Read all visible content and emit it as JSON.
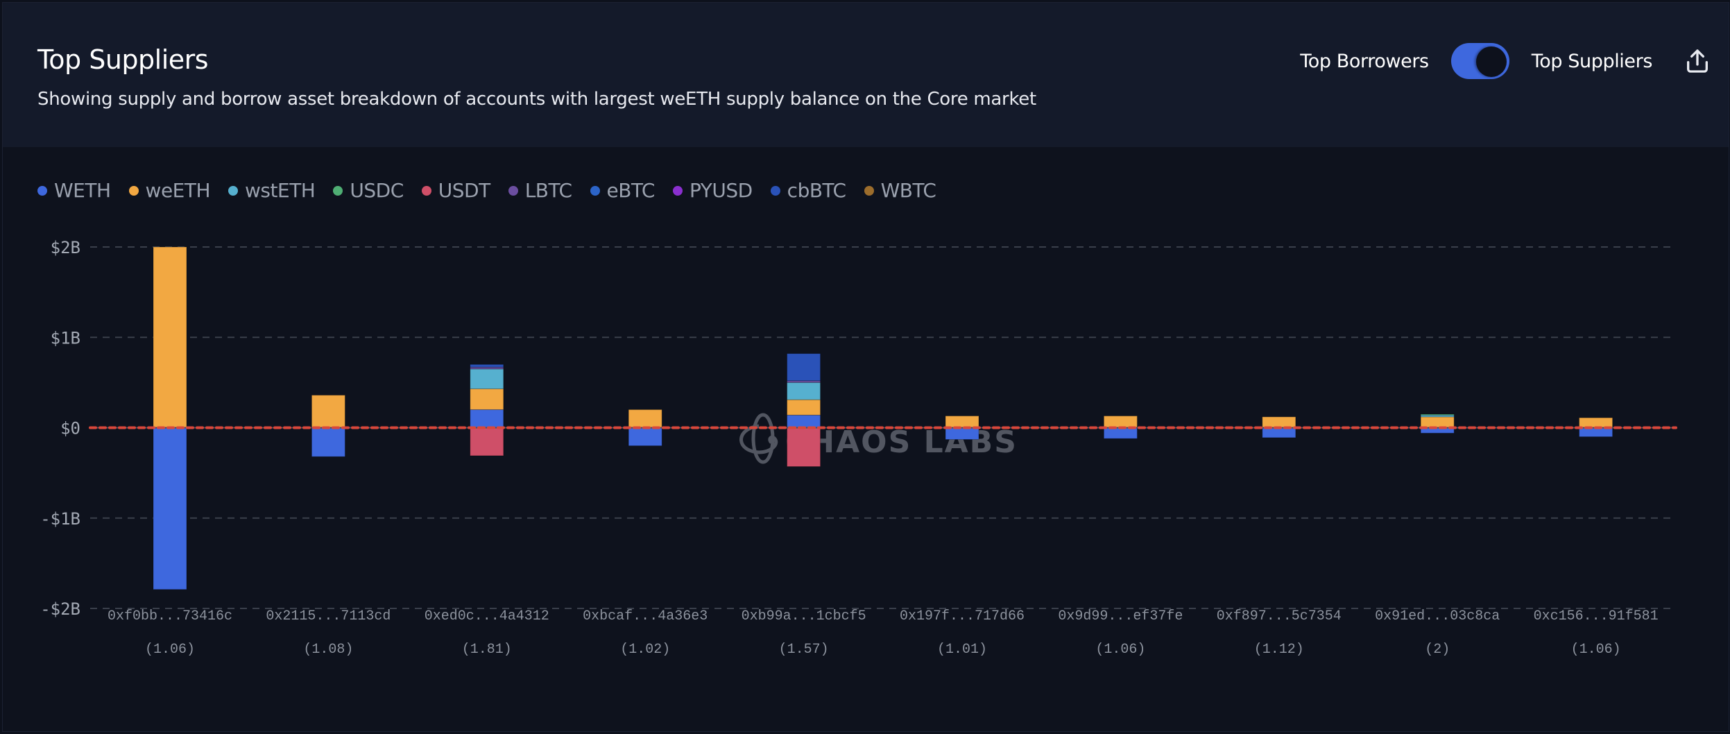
{
  "header": {
    "title": "Top Suppliers",
    "subtitle": "Showing supply and borrow asset breakdown of accounts with largest weETH supply balance on the Core market",
    "toggle_left_label": "Top Borrowers",
    "toggle_right_label": "Top Suppliers",
    "toggle_state": "Top Suppliers",
    "export_icon": "share-upload-icon"
  },
  "colors": {
    "accent": "#3e68de",
    "zero_line": "#d9473b",
    "grid": "#3a3f4b"
  },
  "watermark": "CHAOS LABS",
  "chart_data": {
    "type": "bar",
    "stacked": true,
    "title": "Top Suppliers",
    "xlabel": "",
    "ylabel": "",
    "ylim": [
      -2,
      2
    ],
    "y_unit": "USD billions",
    "y_ticks": [
      2,
      1,
      0,
      -1,
      -2
    ],
    "y_tick_labels": [
      "$2B",
      "$1B",
      "$0",
      "-$1B",
      "-$2B"
    ],
    "grid": true,
    "legend_position": "top-left",
    "legend": [
      {
        "name": "WETH",
        "color": "#3e68de"
      },
      {
        "name": "weETH",
        "color": "#f2a842"
      },
      {
        "name": "wstETH",
        "color": "#56b0cf"
      },
      {
        "name": "USDC",
        "color": "#4fae74"
      },
      {
        "name": "USDT",
        "color": "#cf4f68"
      },
      {
        "name": "LBTC",
        "color": "#6b4ea0"
      },
      {
        "name": "eBTC",
        "color": "#2c64c8"
      },
      {
        "name": "PYUSD",
        "color": "#8a2fcf"
      },
      {
        "name": "cbBTC",
        "color": "#2a52b8"
      },
      {
        "name": "WBTC",
        "color": "#9c6d2c"
      }
    ],
    "categories": [
      "0xf0bb...73416c",
      "0x2115...7113cd",
      "0xed0c...4a4312",
      "0xbcaf...4a36e3",
      "0xb99a...1cbcf5",
      "0x197f...717d66",
      "0x9d99...ef37fe",
      "0xf897...5c7354",
      "0x91ed...03c8ca",
      "0xc156...91f581"
    ],
    "health_factors": [
      "(1.06)",
      "(1.08)",
      "(1.81)",
      "(1.02)",
      "(1.57)",
      "(1.01)",
      "(1.06)",
      "(1.12)",
      "(2)",
      "(1.06)"
    ],
    "series": [
      {
        "name": "WETH",
        "values": [
          -1.79,
          -0.32,
          0.2,
          -0.2,
          0.14,
          -0.13,
          -0.12,
          -0.11,
          -0.06,
          -0.1
        ]
      },
      {
        "name": "weETH",
        "values": [
          2.0,
          0.36,
          0.23,
          0.2,
          0.17,
          0.13,
          0.13,
          0.12,
          0.12,
          0.11
        ]
      },
      {
        "name": "wstETH",
        "values": [
          0,
          0,
          0.22,
          0,
          0.19,
          0,
          0,
          0,
          0.02,
          0
        ]
      },
      {
        "name": "USDC",
        "values": [
          0,
          0,
          0,
          0,
          0,
          0,
          0,
          0,
          0.01,
          0
        ]
      },
      {
        "name": "USDT",
        "values": [
          0,
          0,
          -0.31,
          0,
          -0.43,
          0,
          0,
          0,
          0,
          0
        ]
      },
      {
        "name": "LBTC",
        "values": [
          0,
          0,
          0.02,
          0,
          0.02,
          0,
          0,
          0,
          0,
          0
        ]
      },
      {
        "name": "eBTC",
        "values": [
          0,
          0,
          0,
          0,
          0,
          0,
          0,
          0,
          0,
          0
        ]
      },
      {
        "name": "PYUSD",
        "values": [
          0,
          0,
          0,
          0,
          0,
          0,
          0,
          0,
          0,
          0
        ]
      },
      {
        "name": "cbBTC",
        "values": [
          0,
          0,
          0.03,
          0,
          0.3,
          0,
          0,
          0,
          0,
          0
        ]
      },
      {
        "name": "WBTC",
        "values": [
          0,
          0,
          0,
          0,
          0,
          0,
          0,
          0,
          0,
          0
        ]
      }
    ]
  }
}
